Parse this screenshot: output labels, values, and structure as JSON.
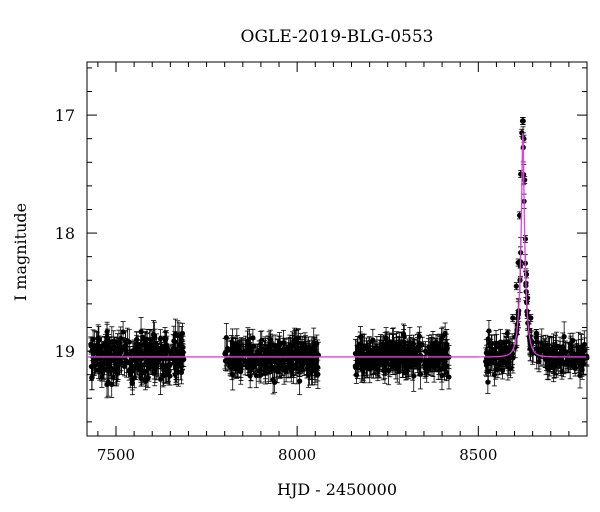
{
  "chart_data": {
    "type": "scatter",
    "title": "OGLE-2019-BLG-0553",
    "xlabel": "HJD - 2450000",
    "ylabel": "I magnitude",
    "xlim": [
      7420,
      8800
    ],
    "ylim": [
      19.72,
      16.55
    ],
    "y_inverted": true,
    "x_ticks": [
      7500,
      8000,
      8500
    ],
    "y_ticks": [
      17,
      18,
      19
    ],
    "grid": false,
    "legend": "none",
    "series": [
      {
        "kind": "observations",
        "marker": "filled-circle-with-errorbars",
        "color": "#000000",
        "seasons": [
          {
            "x_range": [
              7430,
              7690
            ],
            "baseline_mag": 19.05,
            "scatter": 0.16
          },
          {
            "x_range": [
              7800,
              8060
            ],
            "baseline_mag": 19.05,
            "scatter": 0.14
          },
          {
            "x_range": [
              8160,
              8420
            ],
            "baseline_mag": 19.05,
            "scatter": 0.13
          },
          {
            "x_range": [
              8520,
              8800
            ],
            "baseline_mag": 19.05,
            "scatter": 0.12
          }
        ],
        "peak_points": [
          {
            "x": 8560,
            "y": 18.95
          },
          {
            "x": 8580,
            "y": 18.85
          },
          {
            "x": 8595,
            "y": 18.72
          },
          {
            "x": 8605,
            "y": 18.45
          },
          {
            "x": 8610,
            "y": 18.25
          },
          {
            "x": 8614,
            "y": 17.85
          },
          {
            "x": 8617,
            "y": 17.5
          },
          {
            "x": 8620,
            "y": 17.15
          },
          {
            "x": 8622,
            "y": 17.05
          },
          {
            "x": 8624,
            "y": 17.05
          },
          {
            "x": 8626,
            "y": 17.2
          },
          {
            "x": 8628,
            "y": 17.55
          },
          {
            "x": 8630,
            "y": 18.05
          },
          {
            "x": 8633,
            "y": 18.35
          },
          {
            "x": 8636,
            "y": 18.55
          },
          {
            "x": 8645,
            "y": 18.72
          },
          {
            "x": 8660,
            "y": 18.85
          },
          {
            "x": 8690,
            "y": 18.95
          }
        ]
      },
      {
        "kind": "model",
        "color": "#e040e0",
        "baseline_mag": 19.05,
        "peak_x": 8623,
        "peak_mag": 17.15
      }
    ]
  }
}
